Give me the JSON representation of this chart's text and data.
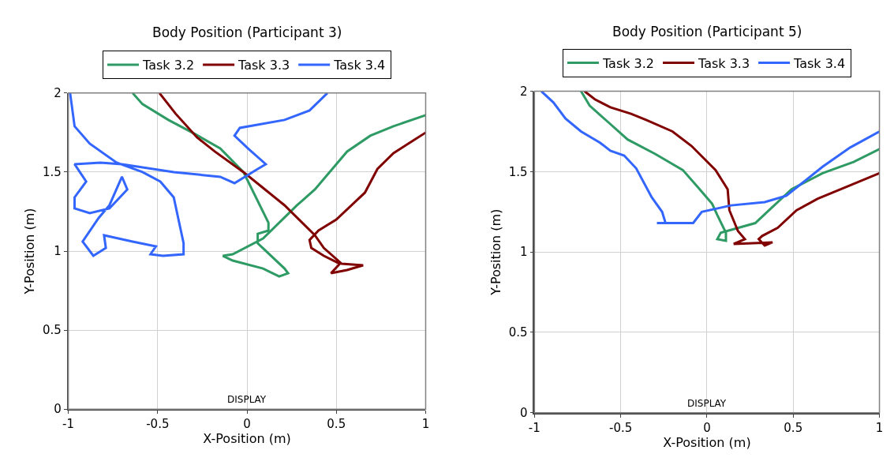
{
  "chart_data": [
    {
      "type": "line",
      "title": "Body Position (Participant 3)",
      "xlabel": "X-Position (m)",
      "ylabel": "Y-Position (m)",
      "xlim": [
        -1,
        1
      ],
      "ylim": [
        0,
        2
      ],
      "xticks": [
        -1,
        -0.5,
        0,
        0.5,
        1
      ],
      "yticks": [
        0,
        0.5,
        1,
        1.5,
        2
      ],
      "grid": true,
      "legend": "top",
      "annotations": [
        "DISPLAY"
      ],
      "series": [
        {
          "name": "Task 3.2",
          "color": "#2e9a64",
          "x": [
            -0.64,
            -0.585,
            -0.44,
            -0.29,
            -0.15,
            -0.02,
            0.12,
            0.12,
            0.06,
            0.06,
            0.21,
            0.23,
            0.18,
            0.09,
            -0.08,
            -0.135,
            -0.08,
            0.09,
            0.28,
            0.38,
            0.56,
            0.69,
            0.82,
            1.0
          ],
          "values": [
            2.0,
            1.93,
            1.83,
            1.74,
            1.65,
            1.5,
            1.18,
            1.13,
            1.11,
            1.05,
            0.89,
            0.86,
            0.84,
            0.89,
            0.94,
            0.97,
            0.98,
            1.08,
            1.29,
            1.39,
            1.63,
            1.73,
            1.79,
            1.86
          ]
        },
        {
          "name": "Task 3.3",
          "color": "#800000",
          "x": [
            -0.49,
            -0.4,
            -0.28,
            -0.18,
            -0.02,
            0.09,
            0.21,
            0.38,
            0.43,
            0.53,
            0.65,
            0.56,
            0.47,
            0.52,
            0.43,
            0.36,
            0.35,
            0.4,
            0.5,
            0.66,
            0.73,
            0.82,
            0.93,
            1.0
          ],
          "values": [
            2.0,
            1.87,
            1.72,
            1.63,
            1.5,
            1.4,
            1.29,
            1.1,
            1.02,
            0.92,
            0.91,
            0.88,
            0.86,
            0.92,
            0.97,
            1.02,
            1.07,
            1.13,
            1.2,
            1.37,
            1.52,
            1.62,
            1.7,
            1.75
          ]
        },
        {
          "name": "Task 3.4",
          "color": "#3366ff",
          "x": [
            -0.99,
            -0.965,
            -0.88,
            -0.73,
            -0.585,
            -0.485,
            -0.41,
            -0.355,
            -0.355,
            -0.47,
            -0.54,
            -0.51,
            -0.64,
            -0.8,
            -0.79,
            -0.86,
            -0.92,
            -0.83,
            -0.77,
            -0.7,
            -0.67,
            -0.77,
            -0.88,
            -0.965,
            -0.965,
            -0.9,
            -0.965,
            -0.82,
            -0.7,
            -0.41,
            -0.15,
            -0.07,
            0.06,
            0.105,
            0.005,
            -0.07,
            -0.04,
            0.21,
            0.35,
            0.45
          ],
          "values": [
            2.0,
            1.79,
            1.68,
            1.56,
            1.5,
            1.44,
            1.34,
            1.05,
            0.98,
            0.97,
            0.98,
            1.03,
            1.06,
            1.1,
            1.02,
            0.97,
            1.06,
            1.21,
            1.29,
            1.47,
            1.39,
            1.27,
            1.24,
            1.27,
            1.34,
            1.44,
            1.55,
            1.56,
            1.55,
            1.5,
            1.47,
            1.43,
            1.52,
            1.55,
            1.65,
            1.73,
            1.78,
            1.83,
            1.89,
            2.0
          ]
        }
      ]
    },
    {
      "type": "line",
      "title": "Body Position (Participant 5)",
      "xlabel": "X-Position (m)",
      "ylabel": "Y-Position (m)",
      "xlim": [
        -1,
        1
      ],
      "ylim": [
        0,
        2
      ],
      "xticks": [
        -1,
        -0.5,
        0,
        0.5,
        1
      ],
      "yticks": [
        0,
        0.5,
        1,
        1.5,
        2
      ],
      "grid": true,
      "legend": "top",
      "annotations": [
        "DISPLAY"
      ],
      "series": [
        {
          "name": "Task 3.2",
          "color": "#2e9a64",
          "x": [
            -0.73,
            -0.68,
            -0.575,
            -0.46,
            -0.3,
            -0.14,
            -0.05,
            0.03,
            0.06,
            0.11,
            0.11,
            0.06,
            0.08,
            0.28,
            0.38,
            0.49,
            0.67,
            0.85,
            1.0
          ],
          "values": [
            2.0,
            1.91,
            1.81,
            1.7,
            1.61,
            1.51,
            1.4,
            1.3,
            1.23,
            1.12,
            1.07,
            1.08,
            1.12,
            1.18,
            1.28,
            1.39,
            1.49,
            1.56,
            1.64
          ]
        },
        {
          "name": "Task 3.3",
          "color": "#800000",
          "x": [
            -0.71,
            -0.65,
            -0.56,
            -0.44,
            -0.35,
            -0.2,
            -0.09,
            0.05,
            0.12,
            0.13,
            0.18,
            0.22,
            0.155,
            0.38,
            0.335,
            0.3,
            0.32,
            0.41,
            0.52,
            0.64,
            0.82,
            1.0
          ],
          "values": [
            2.0,
            1.95,
            1.9,
            1.86,
            1.82,
            1.75,
            1.66,
            1.51,
            1.39,
            1.26,
            1.13,
            1.08,
            1.05,
            1.06,
            1.04,
            1.08,
            1.1,
            1.15,
            1.26,
            1.33,
            1.41,
            1.49
          ]
        },
        {
          "name": "Task 3.4",
          "color": "#3366ff",
          "x": [
            -0.96,
            -0.89,
            -0.82,
            -0.73,
            -0.62,
            -0.56,
            -0.48,
            -0.41,
            -0.32,
            -0.26,
            -0.24,
            -0.29,
            -0.08,
            -0.03,
            0.14,
            0.335,
            0.46,
            0.67,
            0.83,
            1.0
          ],
          "values": [
            2.0,
            1.93,
            1.83,
            1.75,
            1.68,
            1.63,
            1.6,
            1.52,
            1.34,
            1.25,
            1.18,
            1.18,
            1.18,
            1.25,
            1.29,
            1.31,
            1.35,
            1.53,
            1.65,
            1.75
          ]
        }
      ]
    }
  ]
}
